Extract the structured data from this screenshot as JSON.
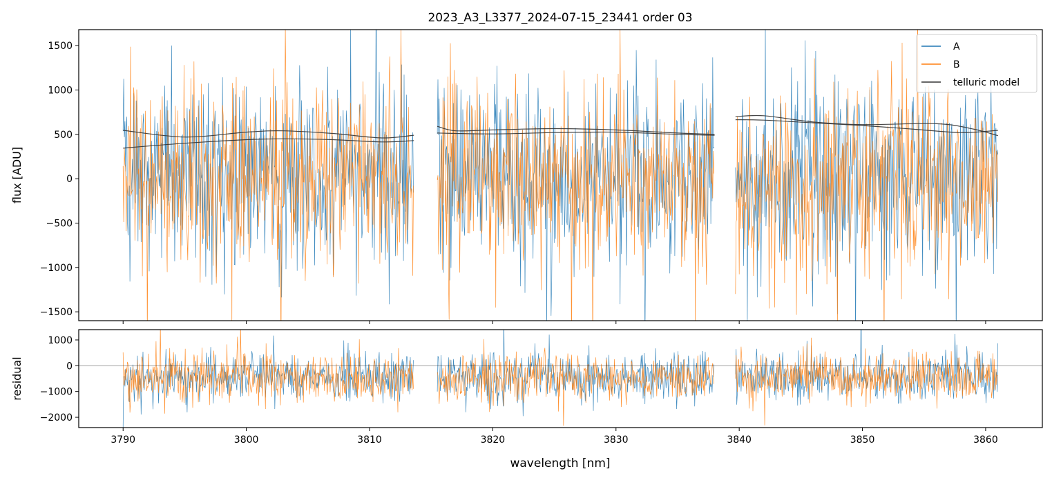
{
  "figure": {
    "title": "2023_A3_L3377_2024-07-15_23441  order 03"
  },
  "chart_data": [
    {
      "type": "line",
      "panel": "flux",
      "title": "2023_A3_L3377_2024-07-15_23441  order 03",
      "xlabel": "",
      "ylabel": "flux [ADU]",
      "xlim": [
        3786.4,
        3864.6
      ],
      "ylim": [
        -1600,
        1680
      ],
      "yticks": [
        -1500,
        -1000,
        -500,
        0,
        500,
        1000,
        1500
      ],
      "ytick_labels": [
        "−1500",
        "−1000",
        "−500",
        "0",
        "500",
        "1000",
        "1500"
      ],
      "xticks": [
        3790,
        3800,
        3810,
        3820,
        3830,
        3840,
        3850,
        3860
      ],
      "grid": false,
      "legend": "top-right",
      "segments": [
        [
          3790.0,
          3813.6
        ],
        [
          3815.5,
          3838.0
        ],
        [
          3839.7,
          3861.0
        ]
      ],
      "series": [
        {
          "name": "A",
          "color": "#1f77b4",
          "kind": "noisy",
          "mean": 40,
          "std": 520,
          "note_values": "dense spectrum; approx mean 40 ADU, spread about ±520 ADU, exceeding axis limits"
        },
        {
          "name": "B",
          "color": "#ff7f0e",
          "kind": "noisy",
          "mean": 0,
          "std": 500,
          "note_values": "dense spectrum; approx mean 0 ADU, spread about ±500 ADU"
        },
        {
          "name": "telluric model",
          "color": "#333333",
          "kind": "model",
          "curves": [
            {
              "x": [
                3790.0,
                3795.0,
                3800.0,
                3803.0,
                3807.0,
                3811.0,
                3813.6
              ],
              "y": [
                545,
                470,
                525,
                540,
                510,
                460,
                490
              ]
            },
            {
              "x": [
                3790.0,
                3795.0,
                3800.0,
                3803.0,
                3807.0,
                3811.0,
                3813.6
              ],
              "y": [
                345,
                400,
                440,
                450,
                440,
                415,
                430
              ]
            },
            {
              "x": [
                3815.5,
                3817.0,
                3820.0,
                3825.0,
                3830.0,
                3835.0,
                3838.0
              ],
              "y": [
                590,
                540,
                550,
                565,
                550,
                515,
                500
              ]
            },
            {
              "x": [
                3815.5,
                3820.0,
                3825.0,
                3830.0,
                3835.0,
                3838.0
              ],
              "y": [
                515,
                505,
                520,
                525,
                500,
                490
              ]
            },
            {
              "x": [
                3839.7,
                3842.0,
                3846.0,
                3850.0,
                3856.0,
                3859.0,
                3861.0
              ],
              "y": [
                700,
                710,
                640,
                610,
                620,
                560,
                485
              ]
            },
            {
              "x": [
                3839.7,
                3842.0,
                3846.0,
                3850.0,
                3854.0,
                3858.0,
                3861.0
              ],
              "y": [
                665,
                660,
                630,
                600,
                560,
                520,
                545
              ]
            }
          ]
        }
      ]
    },
    {
      "type": "line",
      "panel": "residual",
      "xlabel": "wavelength [nm]",
      "ylabel": "residual",
      "xlim": [
        3786.4,
        3864.6
      ],
      "ylim": [
        -2400,
        1400
      ],
      "yticks": [
        -2000,
        -1000,
        0,
        1000
      ],
      "ytick_labels": [
        "−2000",
        "−1000",
        "0",
        "1000"
      ],
      "xticks": [
        3790,
        3800,
        3810,
        3820,
        3830,
        3840,
        3850,
        3860
      ],
      "xtick_labels": [
        "3790",
        "3800",
        "3810",
        "3820",
        "3830",
        "3840",
        "3850",
        "3860"
      ],
      "grid": false,
      "zero_line": 0,
      "segments": [
        [
          3790.0,
          3813.6
        ],
        [
          3815.5,
          3838.0
        ],
        [
          3839.7,
          3861.0
        ]
      ],
      "series": [
        {
          "name": "A",
          "color": "#1f77b4",
          "kind": "noisy",
          "mean": -420,
          "std": 480
        },
        {
          "name": "B",
          "color": "#ff7f0e",
          "kind": "noisy",
          "mean": -430,
          "std": 470
        }
      ]
    }
  ],
  "legend": {
    "entries": [
      {
        "label": "A",
        "color": "#1f77b4"
      },
      {
        "label": "B",
        "color": "#ff7f0e"
      },
      {
        "label": "telluric model",
        "color": "#333333"
      }
    ]
  },
  "colors": {
    "A": "#1f77b4",
    "B": "#ff7f0e",
    "model": "#333333",
    "axes": "#000000"
  }
}
